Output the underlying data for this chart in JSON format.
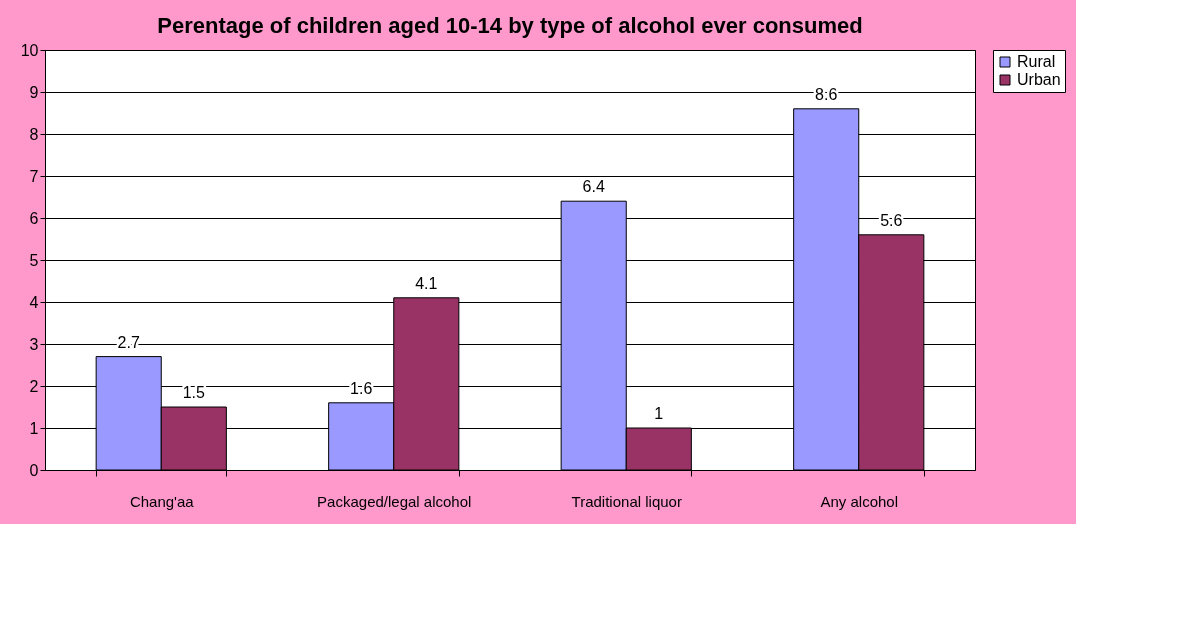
{
  "chart_data": {
    "type": "bar",
    "title": "Perentage of children aged 10-14 by type of alcohol ever consumed",
    "categories": [
      "Chang'aa",
      "Packaged/legal alcohol",
      "Traditional liquor",
      "Any alcohol"
    ],
    "series": [
      {
        "name": "Rural",
        "color": "#9999ff",
        "values": [
          2.7,
          1.6,
          6.4,
          8.6
        ]
      },
      {
        "name": "Urban",
        "color": "#993366",
        "values": [
          1.5,
          4.1,
          1,
          5.6
        ]
      }
    ],
    "ylim": [
      0,
      10
    ],
    "yticks": [
      0,
      1,
      2,
      3,
      4,
      5,
      6,
      7,
      8,
      9,
      10
    ],
    "grid": "y",
    "legend": "right",
    "data_labels": true
  }
}
